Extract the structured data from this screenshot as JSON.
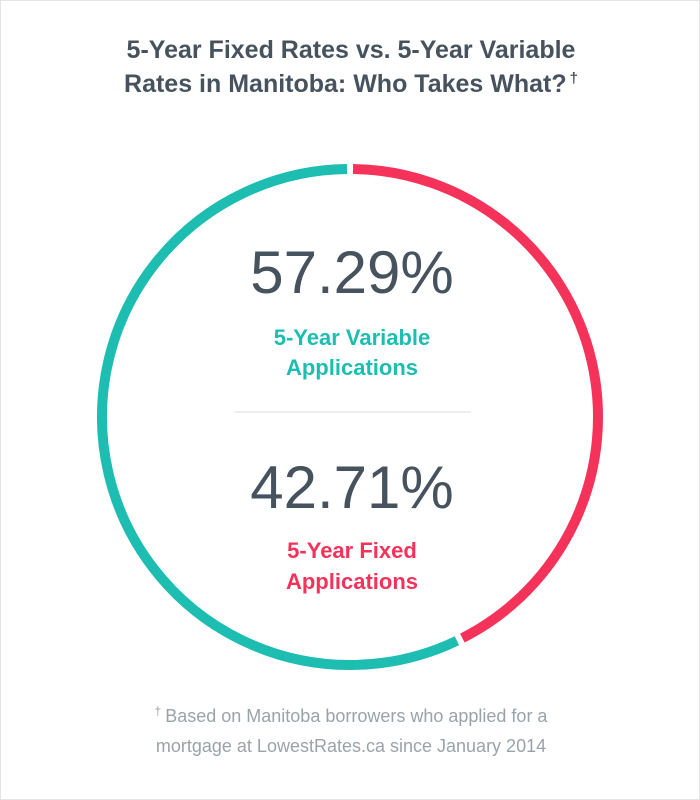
{
  "header": {
    "title_line1": "5-Year Fixed Rates vs. 5-Year Variable",
    "title_line2": "Rates in Manitoba: Who Takes What?",
    "title_mark": "†"
  },
  "chart_data": {
    "type": "pie",
    "categories": [
      "5-Year Variable Applications",
      "5-Year Fixed Applications"
    ],
    "values": [
      57.29,
      42.71
    ],
    "colors": [
      "#1dbdb1",
      "#f5335a"
    ],
    "labels": {
      "variable_pct": "57.29%",
      "variable_line1": "5-Year Variable",
      "variable_line2": "Applications",
      "fixed_pct": "42.71%",
      "fixed_line1": "5-Year Fixed",
      "fixed_line2": "Applications"
    }
  },
  "footnote": {
    "mark": "†",
    "line1": "Based on Manitoba borrowers who applied for a",
    "line2": "mortgage at LowestRates.ca since January 2014"
  }
}
